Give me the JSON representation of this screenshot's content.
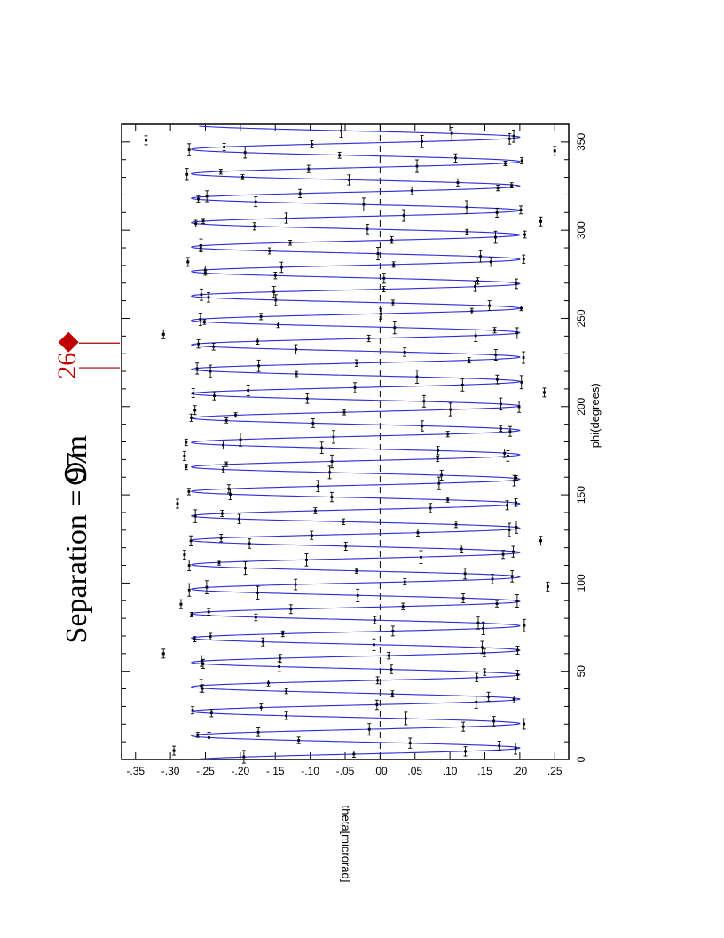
{
  "chart_data": {
    "type": "line",
    "title": "Separation = 97  m",
    "title_parts": {
      "text": "Separation = 97",
      "glyph": "circle-outline",
      "unit": "m"
    },
    "xlabel": "phi(degrees)",
    "ylabel": "theta[microrad]",
    "xlim": [
      0,
      360
    ],
    "ylim": [
      -0.37,
      0.27
    ],
    "x_ticks": [
      0,
      50,
      100,
      150,
      200,
      250,
      300,
      350
    ],
    "x_tick_labels": [
      "0",
      "50",
      "100",
      "150",
      "200",
      "250",
      "300",
      "350"
    ],
    "y_ticks": [
      0.25,
      0.2,
      0.15,
      0.1,
      0.05,
      0.0,
      -0.05,
      -0.1,
      -0.15,
      -0.2,
      -0.25,
      -0.3,
      -0.35
    ],
    "y_tick_labels": [
      ".25",
      ".20",
      ".15",
      ".10",
      ".05",
      ".00",
      "-.05",
      "-.10",
      "-.15",
      "-.20",
      "-.25",
      "-.30",
      "-.35"
    ],
    "orientation": "rotated-90",
    "zero_line": "dashed",
    "series": [
      {
        "kind": "fit",
        "color": "#2b2bd6",
        "period_deg": 13.85,
        "amplitude": 0.235,
        "offset": -0.035,
        "phase_deg": 6.5
      },
      {
        "kind": "data-with-xerror",
        "color": "#000000"
      }
    ],
    "outliers": [
      {
        "x": 5,
        "y": -0.295
      },
      {
        "x": 60,
        "y": -0.31
      },
      {
        "x": 88,
        "y": -0.285
      },
      {
        "x": 98,
        "y": 0.24
      },
      {
        "x": 116,
        "y": -0.28
      },
      {
        "x": 124,
        "y": 0.23
      },
      {
        "x": 145,
        "y": -0.29
      },
      {
        "x": 172,
        "y": -0.28
      },
      {
        "x": 198,
        "y": -0.265
      },
      {
        "x": 208,
        "y": 0.235
      },
      {
        "x": 241,
        "y": -0.31
      },
      {
        "x": 282,
        "y": -0.275
      },
      {
        "x": 305,
        "y": 0.23
      },
      {
        "x": 345,
        "y": 0.25
      },
      {
        "x": 351,
        "y": -0.335
      }
    ],
    "annotation": {
      "text": "26",
      "symbol": "◆",
      "x_marks": [
        222,
        236
      ]
    }
  }
}
